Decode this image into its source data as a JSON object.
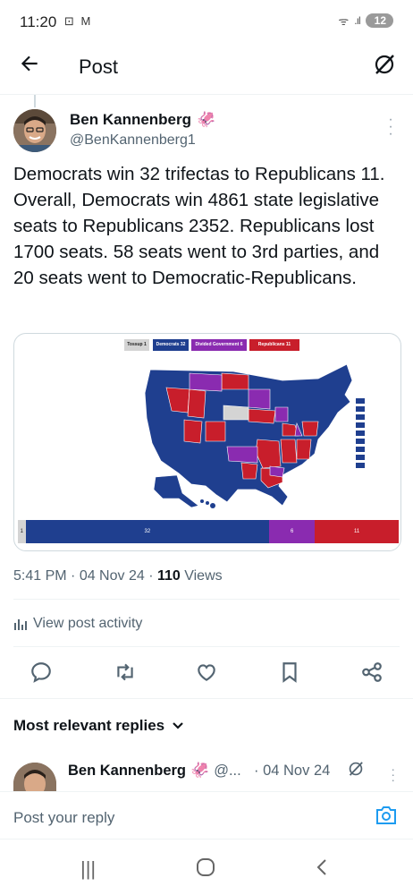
{
  "status_bar": {
    "time": "11:20",
    "battery": "12"
  },
  "header": {
    "title": "Post"
  },
  "author": {
    "name": "Ben Kannenberg",
    "handle": "@BenKannenberg1"
  },
  "post": {
    "text": "Democrats win 32 trifectas to Republicans 11. Overall, Democrats win 4861 state legislative seats to Republicans 2352. Republicans lost 1700 seats. 58 seats went to 3rd parties, and 20 seats went to Democratic-Republicans.",
    "time": "5:41 PM",
    "date": "04 Nov 24",
    "views_count": "110",
    "views_label": "Views"
  },
  "media": {
    "legend": {
      "tossup": "Tossup 1",
      "democrats": "Democrats 32",
      "divided": "Divided Government 6",
      "republicans": "Republicans 11"
    },
    "seat_bar": [
      {
        "label": "1",
        "value": 1,
        "color": "#d4d4d4"
      },
      {
        "label": "32",
        "value": 32,
        "color": "#1f3f8f"
      },
      {
        "label": "6",
        "value": 6,
        "color": "#8a2bb0"
      },
      {
        "label": "11",
        "value": 11,
        "color": "#c81e2b"
      }
    ],
    "colors": {
      "dem": "#1f3f8f",
      "rep": "#c81e2b",
      "divided": "#8a2bb0",
      "tossup": "#d4d4d4"
    }
  },
  "activity": {
    "label": "View post activity"
  },
  "replies": {
    "heading": "Most relevant replies",
    "first": {
      "name": "Ben Kannenberg",
      "handle": "@...",
      "date": "· 04 Nov 24"
    }
  },
  "composer": {
    "placeholder": "Post your reply"
  }
}
